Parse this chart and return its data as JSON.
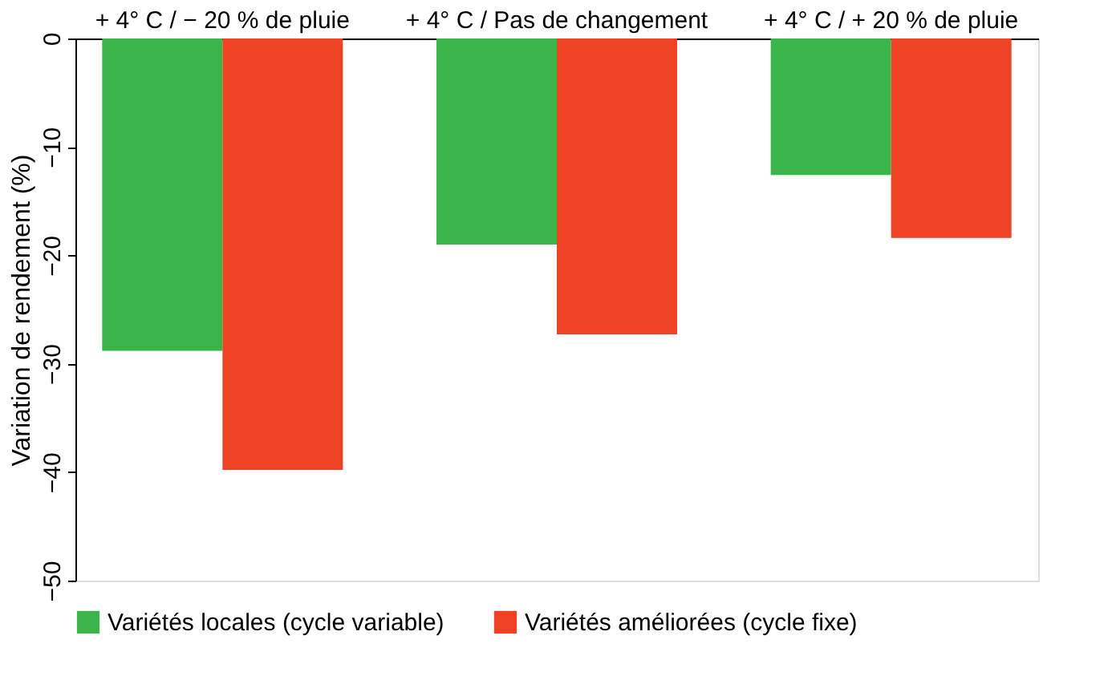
{
  "chart_data": {
    "type": "bar",
    "ylabel": "Variation de rendement (%)",
    "categories": [
      "+ 4° C / − 20 % de pluie",
      "+ 4° C / Pas de changement",
      "+ 4° C / + 20 % de pluie"
    ],
    "series": [
      {
        "name": "Variétés locales (cycle variable)",
        "color": "#3bb54a",
        "values": [
          -28.8,
          -19.0,
          -12.6
        ]
      },
      {
        "name": "Variétés améliorées (cycle fixe)",
        "color": "#ee4224",
        "values": [
          -39.8,
          -27.3,
          -18.4
        ]
      }
    ],
    "ylim": [
      -50,
      0
    ],
    "yticks": [
      0,
      -10,
      -20,
      -30,
      -40,
      -50
    ],
    "grid": false,
    "legend": "bottom"
  }
}
